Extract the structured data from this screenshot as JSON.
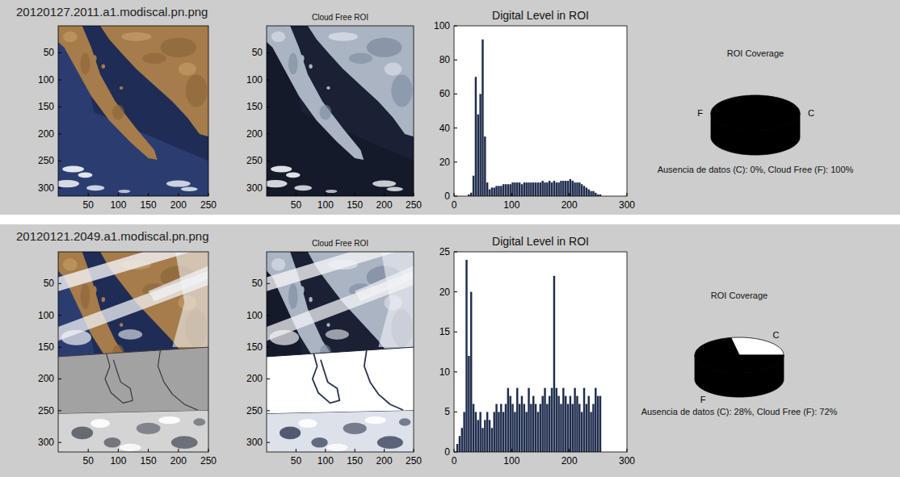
{
  "chart_data": [
    {
      "type": "image",
      "title": "20120127.2011.a1.modiscal.pn.png",
      "xlim": [
        0,
        250
      ],
      "ylim": [
        0,
        315
      ],
      "xticks": [
        50,
        100,
        150,
        200,
        250
      ],
      "yticks": [
        50,
        100,
        150,
        200,
        250,
        300
      ]
    },
    {
      "type": "image",
      "title": "Cloud Free ROI",
      "xlim": [
        0,
        250
      ],
      "ylim": [
        0,
        315
      ],
      "xticks": [
        50,
        100,
        150,
        200,
        250
      ],
      "yticks": [
        50,
        100,
        150,
        200,
        250,
        300
      ]
    },
    {
      "type": "histogram",
      "title": "Digital Level in ROI",
      "color": "#1f2d4d",
      "bins": [
        0,
        4,
        8,
        12,
        16,
        20,
        24,
        28,
        32,
        36,
        40,
        44,
        48,
        52,
        56,
        60,
        64,
        68,
        72,
        76,
        80,
        84,
        88,
        92,
        96,
        100,
        104,
        108,
        112,
        116,
        120,
        124,
        128,
        132,
        136,
        140,
        144,
        148,
        152,
        156,
        160,
        164,
        168,
        172,
        176,
        180,
        184,
        188,
        192,
        196,
        200,
        204,
        208,
        212,
        216,
        220,
        224,
        228,
        232,
        236,
        240,
        244,
        248,
        252,
        256,
        260
      ],
      "counts": [
        0,
        0,
        0,
        0,
        0,
        0,
        1,
        2,
        12,
        70,
        48,
        60,
        92,
        35,
        8,
        4,
        5,
        5,
        6,
        6,
        6,
        7,
        7,
        7,
        7,
        8,
        8,
        8,
        8,
        7,
        8,
        8,
        8,
        8,
        8,
        8,
        8,
        8,
        9,
        8,
        8,
        9,
        8,
        9,
        8,
        8,
        9,
        9,
        9,
        9,
        10,
        9,
        8,
        8,
        8,
        7,
        6,
        5,
        4,
        3,
        3,
        2,
        1,
        1,
        0
      ],
      "xlim": [
        0,
        300
      ],
      "xticks": [
        0,
        100,
        200,
        300
      ],
      "ylim": [
        0,
        100
      ],
      "yticks": [
        0,
        20,
        40,
        60,
        80,
        100
      ]
    },
    {
      "type": "pie",
      "title": "ROI Coverage",
      "categories": [
        "C",
        "F"
      ],
      "values": [
        0,
        100
      ],
      "colors": [
        "#ffffff",
        "#000000"
      ],
      "subtitle": "Ausencia de datos (C): 0%, Cloud Free (F): 100%"
    },
    {
      "type": "image",
      "title": "20120121.2049.a1.modiscal.pn.png",
      "xlim": [
        0,
        250
      ],
      "ylim": [
        0,
        315
      ],
      "xticks": [
        50,
        100,
        150,
        200,
        250
      ],
      "yticks": [
        50,
        100,
        150,
        200,
        250,
        300
      ]
    },
    {
      "type": "image",
      "title": "Cloud Free ROI",
      "xlim": [
        0,
        250
      ],
      "ylim": [
        0,
        315
      ],
      "xticks": [
        50,
        100,
        150,
        200,
        250
      ],
      "yticks": [
        50,
        100,
        150,
        200,
        250,
        300
      ]
    },
    {
      "type": "histogram",
      "title": "Digital Level in ROI",
      "color": "#1f2d4d",
      "bins": [
        0,
        4,
        8,
        12,
        16,
        20,
        24,
        28,
        32,
        36,
        40,
        44,
        48,
        52,
        56,
        60,
        64,
        68,
        72,
        76,
        80,
        84,
        88,
        92,
        96,
        100,
        104,
        108,
        112,
        116,
        120,
        124,
        128,
        132,
        136,
        140,
        144,
        148,
        152,
        156,
        160,
        164,
        168,
        172,
        176,
        180,
        184,
        188,
        192,
        196,
        200,
        204,
        208,
        212,
        216,
        220,
        224,
        228,
        232,
        236,
        240,
        244,
        248,
        252,
        256,
        260
      ],
      "counts": [
        0,
        1,
        2,
        3,
        5,
        24,
        12,
        20,
        6,
        5,
        4,
        5,
        3,
        4,
        5,
        4,
        3,
        5,
        6,
        5,
        6,
        5,
        6,
        8,
        7,
        6,
        5,
        8,
        6,
        7,
        6,
        5,
        8,
        6,
        7,
        6,
        5,
        6,
        7,
        8,
        6,
        7,
        8,
        22,
        8,
        7,
        6,
        8,
        7,
        6,
        7,
        6,
        8,
        7,
        6,
        5,
        8,
        6,
        7,
        5,
        6,
        8,
        7,
        7,
        0
      ],
      "xlim": [
        0,
        300
      ],
      "xticks": [
        0,
        100,
        200,
        300
      ],
      "ylim": [
        0,
        25
      ],
      "yticks": [
        0,
        5,
        10,
        15,
        20,
        25
      ]
    },
    {
      "type": "pie",
      "title": "ROI Coverage",
      "categories": [
        "C",
        "F"
      ],
      "values": [
        28,
        72
      ],
      "colors": [
        "#ffffff",
        "#000000"
      ],
      "subtitle": "Ausencia de datos (C): 28%, Cloud Free (F): 72%"
    }
  ]
}
